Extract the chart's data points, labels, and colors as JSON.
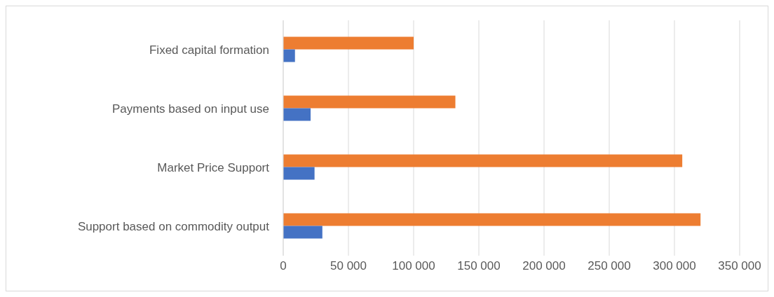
{
  "chart_data": {
    "type": "bar",
    "orientation": "horizontal",
    "categories": [
      "Fixed capital formation",
      "Payments based on input use",
      "Market Price Support",
      "Support based on commodity output"
    ],
    "series": [
      {
        "color": "#ed7d31",
        "values": [
          100000,
          132000,
          306000,
          320000
        ]
      },
      {
        "color": "#4472c4",
        "values": [
          9000,
          21000,
          24000,
          30000
        ]
      }
    ],
    "xlim": [
      0,
      350000
    ],
    "xticks": [
      0,
      {
        "value": 50000,
        "label": "50 000"
      },
      {
        "value": 100000,
        "label": "100 000"
      },
      {
        "value": 150000,
        "label": "150 000"
      },
      {
        "value": 200000,
        "label": "200 000"
      },
      {
        "value": 250000,
        "label": "250 000"
      },
      {
        "value": 300000,
        "label": "300 000"
      },
      {
        "value": 350000,
        "label": "350 000"
      }
    ],
    "grid": "x",
    "legend": false
  }
}
